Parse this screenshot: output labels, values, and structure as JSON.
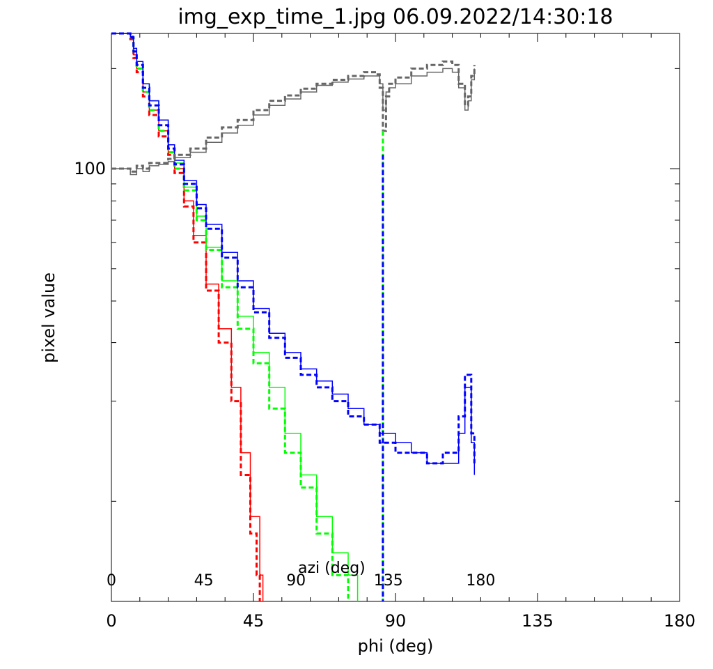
{
  "chart_data": {
    "type": "line",
    "title": "img_exp_time_1.jpg 06.09.2022/14:30:18",
    "xlabel": "phi (deg)",
    "ylabel": "pixel value",
    "x_range": [
      0,
      180
    ],
    "x_ticks": [
      "0",
      "45",
      "90",
      "135",
      "180"
    ],
    "y_scale": "log",
    "y_range": [
      5,
      255
    ],
    "y_ticks": [
      "100"
    ],
    "secondary_x_axis": {
      "label": "azi (deg)",
      "ticks": [
        "0",
        "45",
        "90",
        "135",
        "180"
      ],
      "note": "overplotted inside plot area, compressed to phi 0–117"
    },
    "grid": false,
    "legend": "none",
    "series": [
      {
        "style": "solid",
        "color": "#ff0000",
        "x": [
          0,
          5,
          6,
          7,
          8,
          10,
          12,
          15,
          18,
          20,
          23,
          26,
          30,
          34,
          38,
          41,
          44,
          47,
          48
        ],
        "y": [
          255,
          255,
          250,
          220,
          200,
          170,
          150,
          130,
          112,
          100,
          80,
          63,
          45,
          33,
          22,
          14,
          9,
          6,
          5
        ]
      },
      {
        "style": "dashed",
        "color": "#ff0000",
        "x": [
          0,
          5,
          6,
          7,
          8,
          10,
          12,
          15,
          18,
          20,
          23,
          26,
          30,
          34,
          38,
          41,
          44,
          46,
          47
        ],
        "y": [
          255,
          255,
          245,
          215,
          195,
          165,
          145,
          125,
          110,
          97,
          77,
          60,
          43,
          30,
          20,
          12,
          8,
          6,
          5
        ]
      },
      {
        "style": "solid",
        "color": "#00ff00",
        "x": [
          0,
          5,
          6,
          7,
          8,
          10,
          12,
          15,
          18,
          20,
          23,
          27,
          30,
          35,
          40,
          45,
          50,
          55,
          60,
          65,
          70,
          75,
          78
        ],
        "y": [
          255,
          255,
          250,
          230,
          210,
          180,
          160,
          140,
          118,
          104,
          88,
          72,
          58,
          46,
          36,
          28,
          22,
          16,
          12,
          9,
          7,
          6,
          5
        ]
      },
      {
        "style": "dashed",
        "color": "#00ff00",
        "x": [
          0,
          5,
          6,
          7,
          8,
          10,
          12,
          15,
          18,
          20,
          23,
          27,
          30,
          35,
          40,
          45,
          50,
          55,
          60,
          65,
          70,
          75
        ],
        "y": [
          255,
          255,
          248,
          225,
          200,
          170,
          150,
          130,
          112,
          100,
          86,
          70,
          57,
          44,
          33,
          26,
          19,
          14,
          11,
          8,
          6,
          5
        ]
      },
      {
        "style": "solid",
        "color": "#0000ff",
        "x": [
          0,
          5,
          6,
          7,
          8,
          10,
          12,
          15,
          18,
          20,
          23,
          27,
          30,
          35,
          40,
          45,
          50,
          55,
          60,
          65,
          70,
          75,
          80,
          85,
          90,
          95,
          100,
          105,
          110,
          112,
          114,
          115
        ],
        "y": [
          255,
          255,
          250,
          230,
          210,
          180,
          160,
          140,
          118,
          106,
          92,
          78,
          68,
          56,
          46,
          38,
          32,
          28,
          25,
          23,
          21,
          19,
          17,
          16,
          15,
          14,
          13,
          13,
          16,
          22,
          15,
          12
        ]
      },
      {
        "style": "dashed",
        "color": "#0000ff",
        "x": [
          0,
          5,
          6,
          7,
          8,
          10,
          12,
          15,
          18,
          20,
          23,
          27,
          30,
          35,
          40,
          45,
          50,
          55,
          60,
          65,
          70,
          75,
          80,
          85,
          90,
          95,
          100,
          105,
          110,
          112,
          114,
          115
        ],
        "y": [
          255,
          255,
          248,
          225,
          205,
          175,
          155,
          135,
          115,
          103,
          90,
          76,
          66,
          54,
          44,
          37,
          31,
          27,
          24,
          22,
          20,
          18,
          17,
          15,
          14,
          14,
          13,
          14,
          18,
          24,
          16,
          13
        ]
      },
      {
        "style": "solid",
        "color": "#666666",
        "x": [
          0,
          5,
          6,
          8,
          10,
          12,
          15,
          18,
          20,
          25,
          30,
          35,
          40,
          45,
          50,
          55,
          60,
          65,
          70,
          75,
          80,
          84,
          85,
          86,
          87,
          88,
          90,
          95,
          100,
          105,
          108,
          110,
          112,
          113,
          114,
          115
        ],
        "y": [
          100,
          100,
          96,
          100,
          98,
          102,
          103,
          105,
          108,
          112,
          120,
          128,
          135,
          145,
          155,
          162,
          170,
          178,
          182,
          186,
          190,
          190,
          180,
          150,
          170,
          175,
          180,
          190,
          195,
          200,
          195,
          175,
          150,
          160,
          185,
          200
        ]
      },
      {
        "style": "dashed",
        "color": "#666666",
        "x": [
          0,
          5,
          6,
          8,
          10,
          12,
          15,
          18,
          20,
          25,
          30,
          35,
          40,
          45,
          50,
          55,
          60,
          65,
          70,
          75,
          80,
          84,
          85,
          86,
          87,
          88,
          90,
          95,
          100,
          105,
          108,
          110,
          112,
          113,
          114,
          115
        ],
        "y": [
          100,
          100,
          98,
          102,
          100,
          104,
          104,
          107,
          110,
          115,
          124,
          133,
          140,
          150,
          160,
          166,
          174,
          180,
          185,
          190,
          195,
          192,
          175,
          130,
          165,
          180,
          188,
          200,
          205,
          210,
          205,
          180,
          155,
          165,
          190,
          205
        ]
      },
      {
        "style": "dashed",
        "color": "#00ff00",
        "x": [
          86,
          86.01
        ],
        "y": [
          130,
          5
        ]
      },
      {
        "style": "dashed",
        "color": "#0000ff",
        "x": [
          86,
          86.01
        ],
        "y": [
          110,
          5
        ]
      }
    ]
  },
  "colors": {
    "axis": "#000000",
    "background": "#ffffff"
  }
}
